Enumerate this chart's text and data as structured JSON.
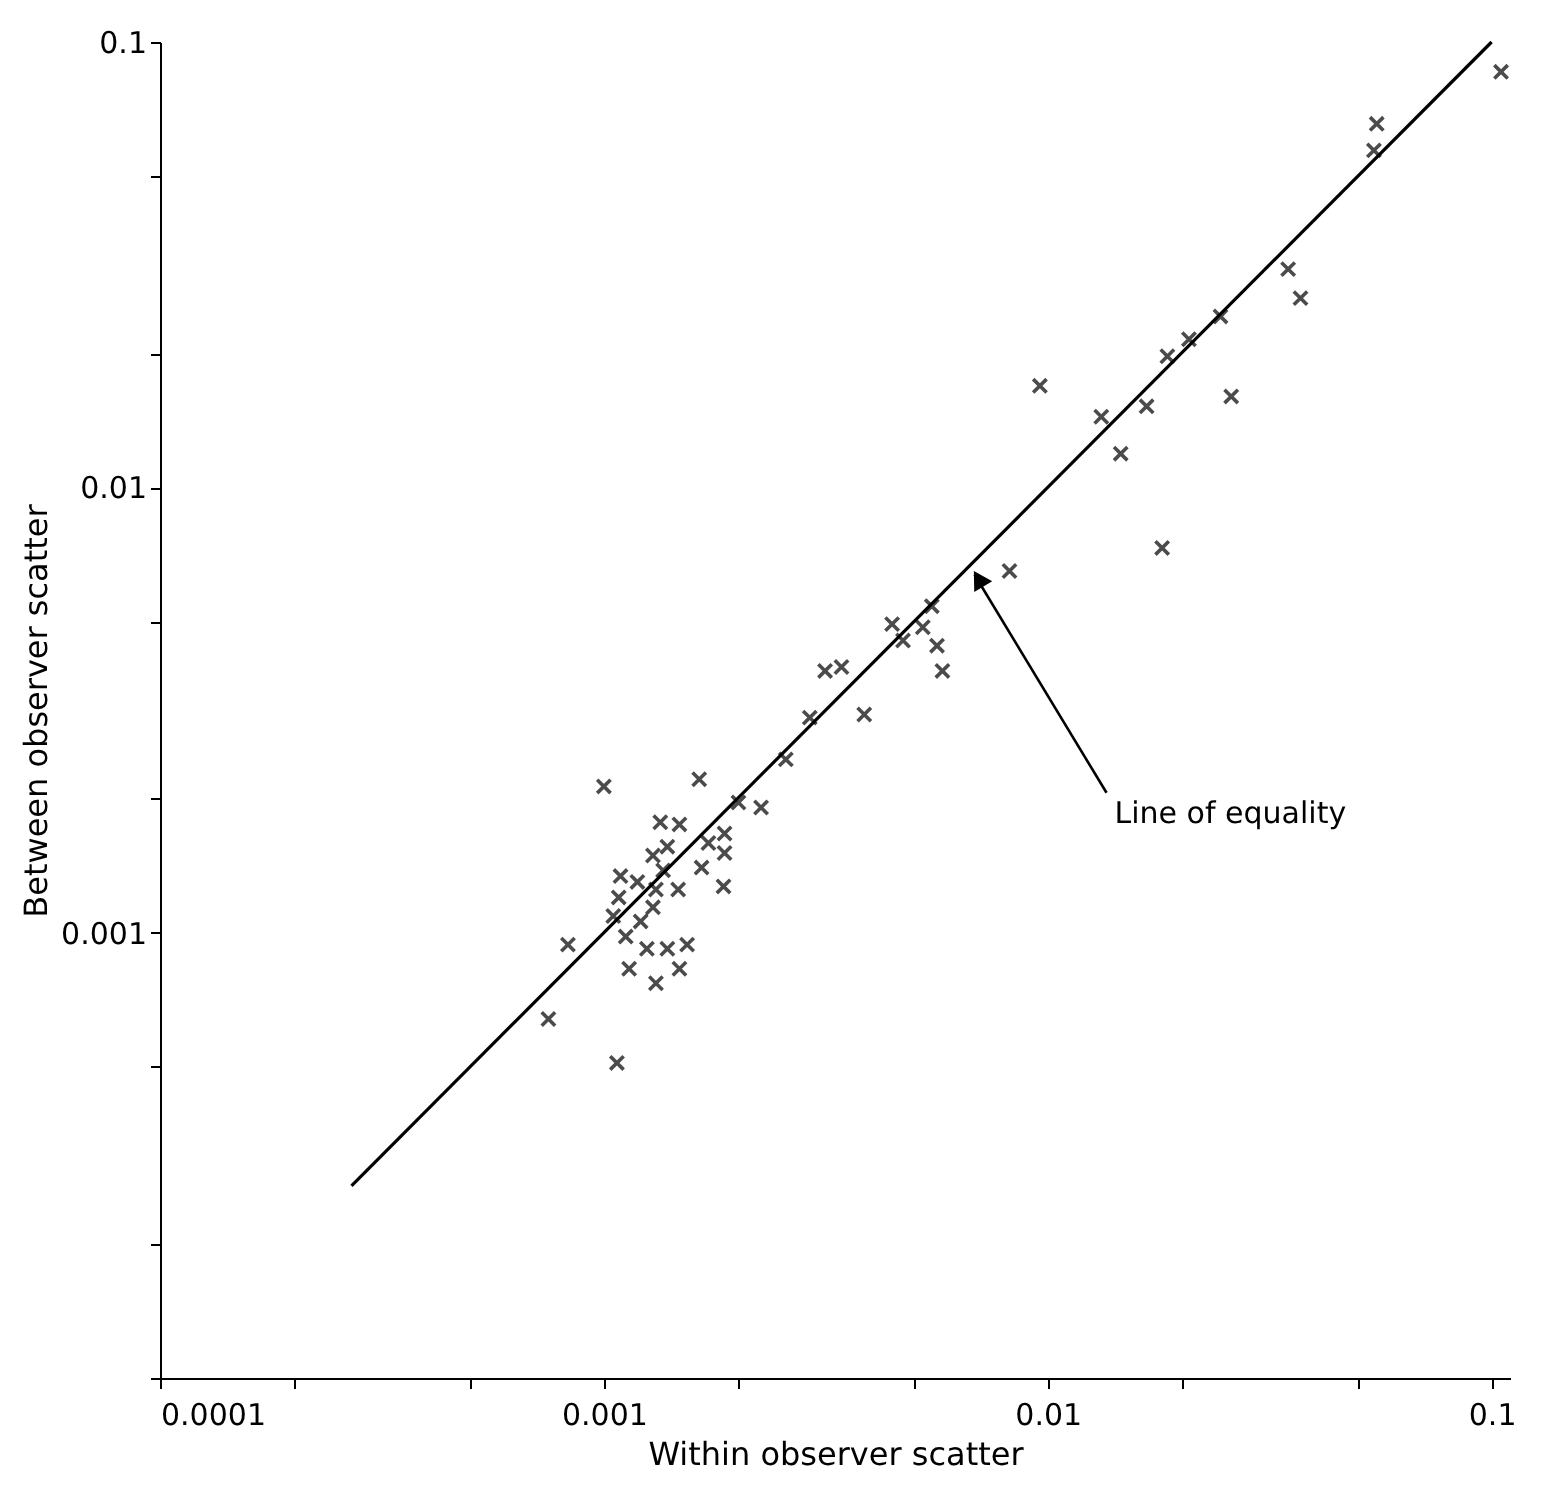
{
  "chart_data": {
    "type": "scatter",
    "xlabel": "Within observer scatter",
    "ylabel": "Between observer scatter",
    "log": "xy",
    "grid": false,
    "marker": "cross",
    "xlim": [
      0.0001,
      0.11
    ],
    "ylim": [
      0.0001,
      0.1
    ],
    "xticks": [
      0.0001,
      {
        "value": 0.0002,
        "label": null
      },
      {
        "value": 0.0005,
        "label": null
      },
      0.001,
      {
        "value": 0.002,
        "label": null
      },
      {
        "value": 0.005,
        "label": null
      },
      0.01,
      {
        "value": 0.02,
        "label": null
      },
      {
        "value": 0.05,
        "label": null
      },
      0.1
    ],
    "yticks": [
      {
        "value": 0.0001,
        "label": null
      },
      {
        "value": 0.0002,
        "label": null
      },
      {
        "value": 0.0005,
        "label": null
      },
      0.001,
      {
        "value": 0.002,
        "label": null
      },
      {
        "value": 0.005,
        "label": null
      },
      0.01,
      {
        "value": 0.02,
        "label": null
      },
      {
        "value": 0.05,
        "label": null
      },
      0.1
    ],
    "series": [
      {
        "color": "#000000",
        "x": [
          0.001,
          0.00164,
          0.00257,
          0.00201,
          0.00226,
          0.00134,
          0.00148,
          0.00139,
          0.00129,
          0.00187,
          0.00172,
          0.00187,
          0.00109,
          0.00119,
          0.00131,
          0.00147,
          0.00166,
          0.00186,
          0.00108,
          0.00129,
          0.00105,
          0.00121,
          0.00136,
          0.00112,
          0.00125,
          0.00139,
          0.00154,
          0.00114,
          0.00148,
          0.00131,
          0.00083,
          0.00075,
          0.00107,
          0.00291,
          0.00386,
          0.00315,
          0.00343,
          0.00446,
          0.00472,
          0.00523,
          0.00548,
          0.00563,
          0.00579,
          0.0082,
          0.0181,
          0.0096,
          0.0132,
          0.0146,
          0.0167,
          0.0186,
          0.0208,
          0.0245,
          0.0259,
          0.0348,
          0.0371,
          0.0543,
          0.0551,
          0.105
        ],
        "values": [
          0.00213,
          0.00221,
          0.00245,
          0.00196,
          0.00191,
          0.00177,
          0.00175,
          0.00156,
          0.00149,
          0.00167,
          0.00159,
          0.00151,
          0.00134,
          0.0013,
          0.00125,
          0.00125,
          0.0014,
          0.00127,
          0.0012,
          0.00114,
          0.00109,
          0.00106,
          0.00138,
          0.00098,
          0.00092,
          0.00092,
          0.00094,
          0.00083,
          0.00083,
          0.00077,
          0.00094,
          0.00064,
          0.00051,
          0.00304,
          0.00309,
          0.00387,
          0.00395,
          0.00493,
          0.00453,
          0.00485,
          0.00541,
          0.00441,
          0.00387,
          0.00649,
          0.00731,
          0.0169,
          0.0144,
          0.0119,
          0.0152,
          0.0197,
          0.0215,
          0.0242,
          0.016,
          0.0309,
          0.0266,
          0.0571,
          0.0655,
          0.0857
        ]
      },
      {
        "type": "line",
        "color": "#000000",
        "line_style": "solid",
        "marker": "none",
        "x": [
          0.00027,
          0.1
        ],
        "values": [
          0.00027,
          0.1
        ]
      }
    ],
    "annotations": [
      {
        "text": "Line of equality",
        "x": 0.0067,
        "y": 0.0067
      }
    ]
  }
}
